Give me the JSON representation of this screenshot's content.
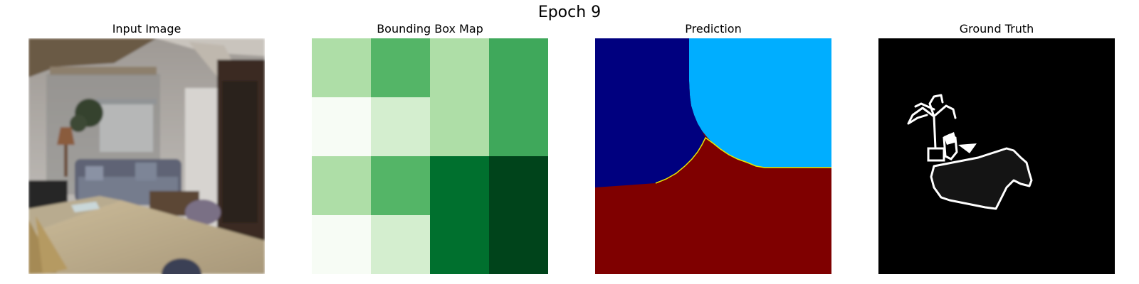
{
  "figure": {
    "title": "Epoch 9"
  },
  "panels": [
    {
      "title": "Input Image"
    },
    {
      "title": "Bounding Box Map"
    },
    {
      "title": "Prediction"
    },
    {
      "title": "Ground Truth"
    }
  ],
  "bbox_map": {
    "colormap": "Greens",
    "grid": [
      [
        0.25,
        0.55,
        0.35,
        0.75
      ],
      [
        0.02,
        0.18,
        0.35,
        0.75
      ],
      [
        0.22,
        0.62,
        0.92,
        1.0
      ],
      [
        0.05,
        0.18,
        0.92,
        1.0
      ]
    ],
    "colors": [
      "#f7fcf5",
      "#d4eecf",
      "#aedea7",
      "#73c476",
      "#54b567",
      "#3fa85b",
      "#00702e",
      "#00441b"
    ]
  },
  "prediction": {
    "colormap": "jet",
    "class_colors": {
      "top_left": "#00007f",
      "top_right": "#00aeff",
      "bottom": "#7f0000",
      "boundary": "#e8e800"
    }
  },
  "ground_truth": {
    "background": "#000000",
    "outline": "#ffffff",
    "fill": "#141414"
  }
}
